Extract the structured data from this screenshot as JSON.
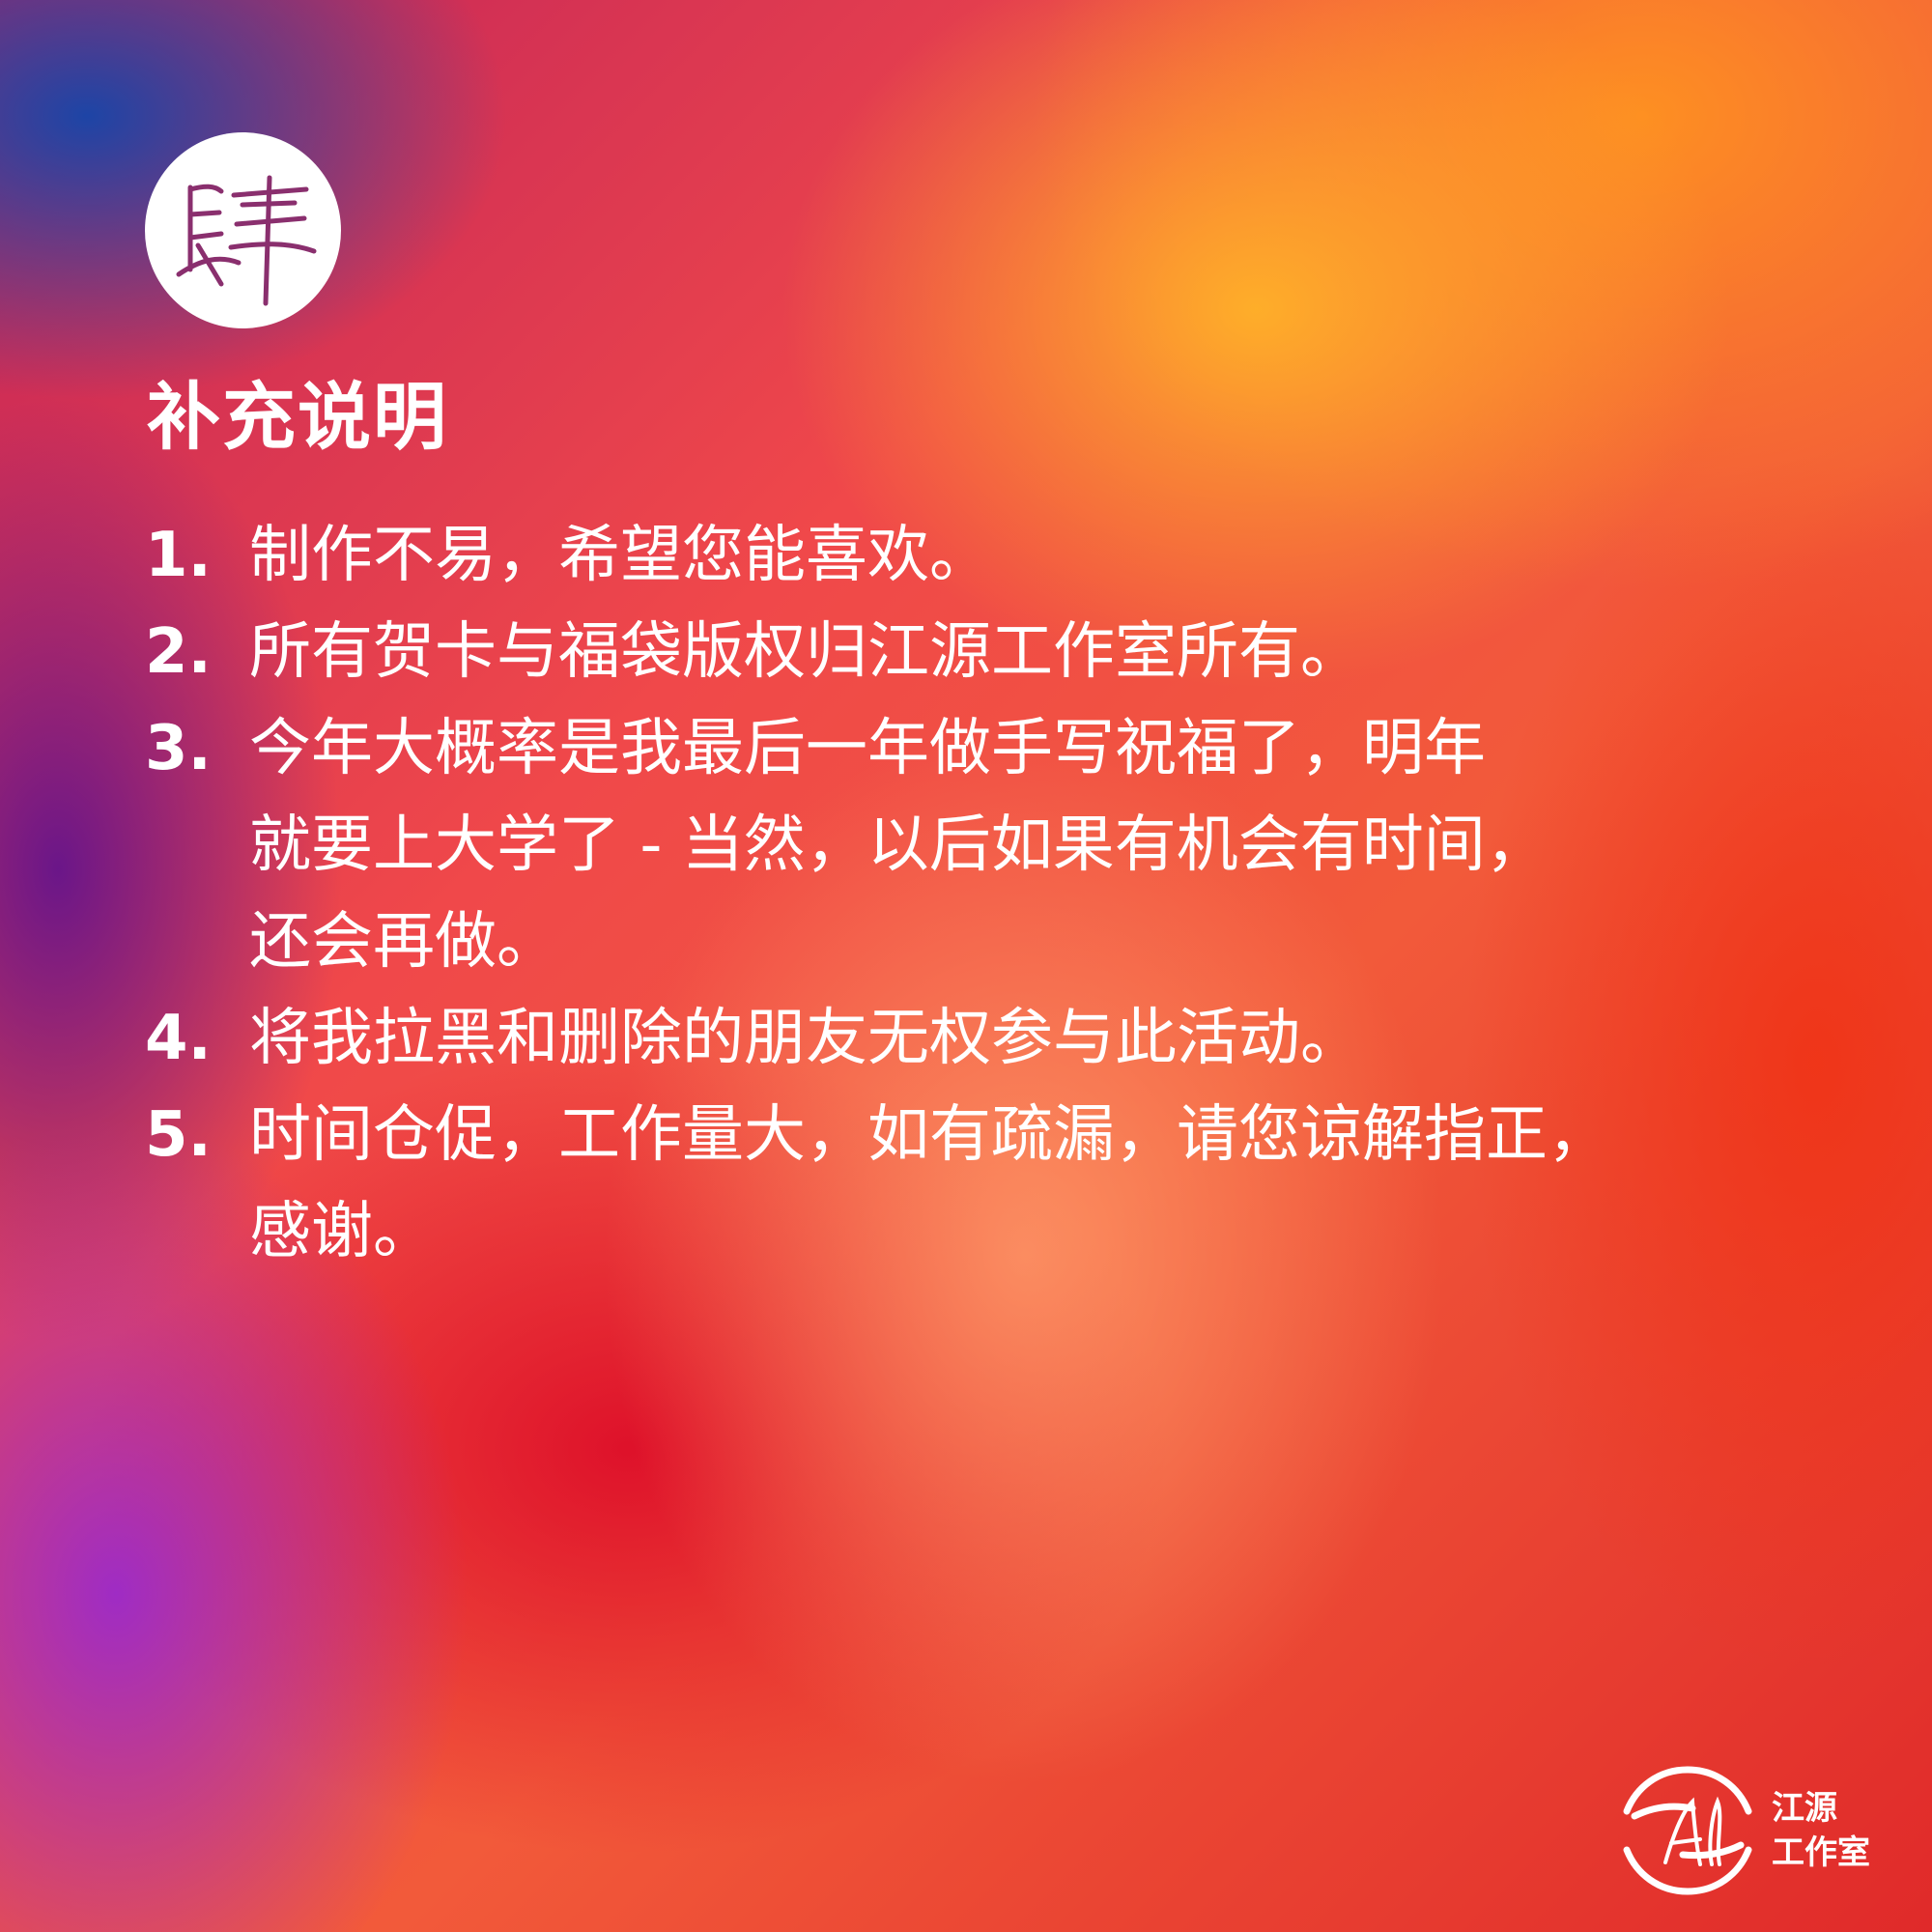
{
  "logo": {
    "character": "肆"
  },
  "title": "补充说明",
  "items": [
    {
      "num": "1.",
      "text": "制作不易，希望您能喜欢。"
    },
    {
      "num": "2.",
      "text": "所有贺卡与福袋版权归江源工作室所有。"
    },
    {
      "num": "3.",
      "line1": "今年大概率是我最后一年做手写祝福了，明年",
      "line2": "就要上大学了 - 当然，以后如果有机会有时间，",
      "line3": "还会再做。"
    },
    {
      "num": "4.",
      "text": "将我拉黑和删除的朋友无权参与此活动。"
    },
    {
      "num": "5.",
      "line1": "时间仓促，工作量大，如有疏漏，请您谅解指正，",
      "line2": "感谢。"
    }
  ],
  "brand": {
    "line1": "江源",
    "line2": "工作室",
    "mark_letters": "Al"
  },
  "colors": {
    "text": "#ffffff",
    "logo_ink": "#8a2f6e"
  }
}
